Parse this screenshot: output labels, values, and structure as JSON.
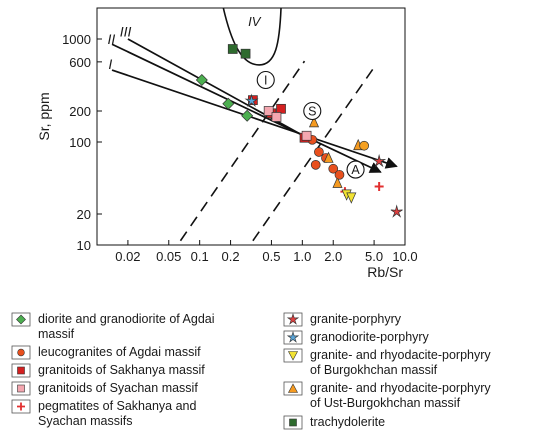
{
  "chart_data": {
    "type": "scatter",
    "x_scale": "log",
    "y_scale": "log",
    "xlim": [
      0.01,
      10
    ],
    "ylim": [
      10,
      2000
    ],
    "xlabel": "Rb/Sr",
    "ylabel": "Sr, ppm",
    "x_ticks": [
      {
        "value": 0.02,
        "label": "0.02"
      },
      {
        "value": 0.05,
        "label": "0.05"
      },
      {
        "value": 0.1,
        "label": "0.1"
      },
      {
        "value": 0.2,
        "label": "0.2"
      },
      {
        "value": 0.5,
        "label": "0.5"
      },
      {
        "value": 1,
        "label": "1.0"
      },
      {
        "value": 2,
        "label": "2.0"
      },
      {
        "value": 5,
        "label": "5.0"
      },
      {
        "value": 10,
        "label": "10.0"
      }
    ],
    "y_ticks": [
      {
        "value": 10,
        "label": "10"
      },
      {
        "value": 20,
        "label": "20"
      },
      {
        "value": 100,
        "label": "100"
      },
      {
        "value": 200,
        "label": "200"
      },
      {
        "value": 600,
        "label": "600"
      },
      {
        "value": 1000,
        "label": "1000"
      }
    ],
    "series": [
      {
        "name": "diorite and granodiorite of Agdai massif",
        "marker": "diamond",
        "color": "#4caf50",
        "points": [
          [
            0.105,
            400
          ],
          [
            0.19,
            235
          ],
          [
            0.29,
            180
          ]
        ]
      },
      {
        "name": "leucogranites of Agdai massif",
        "marker": "circle",
        "color": "#e8501e",
        "points": [
          [
            1.25,
            105
          ],
          [
            1.45,
            80
          ],
          [
            1.7,
            70
          ],
          [
            2.0,
            55
          ],
          [
            1.35,
            60
          ]
        ]
      },
      {
        "name": "granitoids of Sakhanya massif",
        "marker": "square",
        "color": "#d42020",
        "points": [
          [
            0.33,
            255
          ],
          [
            0.5,
            190
          ],
          [
            0.62,
            210
          ],
          [
            1.05,
            110
          ]
        ]
      },
      {
        "name": "granitoids of Syachan massif",
        "marker": "square",
        "color": "#f4a7b0",
        "points": [
          [
            0.47,
            200
          ],
          [
            0.56,
            175
          ],
          [
            1.1,
            115
          ]
        ]
      },
      {
        "name": "pegmatites of Sakhanya and Syachan massifs",
        "marker": "plus",
        "color": "#e23030",
        "points": [
          [
            2.6,
            33
          ],
          [
            5.6,
            37
          ]
        ]
      },
      {
        "name": "granite-porphyry",
        "marker": "star",
        "color": "#e04040",
        "points": [
          [
            5.6,
            65
          ],
          [
            8.3,
            21
          ]
        ]
      },
      {
        "name": "granodiorite-porphyry",
        "marker": "star",
        "color": "#5aa5d8",
        "points": [
          [
            0.32,
            250
          ]
        ]
      },
      {
        "name": "granite- and rhyodacite-porphyry of Burgokhchan massif",
        "marker": "triangle-down",
        "color": "#f2e233",
        "points": [
          [
            2.7,
            31
          ],
          [
            3.0,
            29
          ]
        ]
      },
      {
        "name": "granite- and rhyodacite-porphyry of Ust-Burgokhchan massif",
        "marker": "triangle-up",
        "color": "#f59a20",
        "points": [
          [
            1.3,
            155
          ],
          [
            1.8,
            70
          ],
          [
            2.2,
            40
          ],
          [
            3.5,
            93
          ]
        ]
      },
      {
        "name": "trachydolerite",
        "marker": "square",
        "color": "#2e6b2e",
        "points": [
          [
            0.21,
            800
          ],
          [
            0.28,
            720
          ]
        ]
      }
    ],
    "extra_points": [
      {
        "marker": "circle",
        "color": "#f5a020",
        "x": 4.0,
        "y": 92
      },
      {
        "marker": "circle",
        "color": "#e8501e",
        "x": 2.3,
        "y": 48
      }
    ],
    "trend_lines": [
      {
        "label": "I",
        "points": [
          [
            0.014,
            500
          ],
          [
            8.3,
            58
          ]
        ]
      },
      {
        "label": "II",
        "points": [
          [
            0.014,
            890
          ],
          [
            1.25,
            105
          ],
          [
            5.8,
            51
          ]
        ]
      },
      {
        "label": "III",
        "points": [
          [
            0.02,
            1000
          ],
          [
            1.15,
            108
          ]
        ]
      }
    ],
    "region_iv": {
      "label": "IV"
    },
    "dashed_lines": [
      {
        "points": [
          [
            0.065,
            11
          ],
          [
            1.05,
            610
          ]
        ]
      },
      {
        "points": [
          [
            0.33,
            11
          ],
          [
            5.0,
            530
          ]
        ]
      }
    ],
    "circle_labels": [
      {
        "label": "I",
        "x": 0.44,
        "y": 400
      },
      {
        "label": "S",
        "x": 1.25,
        "y": 200
      },
      {
        "label": "A",
        "x": 3.3,
        "y": 54
      }
    ]
  },
  "legend": {
    "left": [
      {
        "marker": "diamond",
        "color": "#4caf50",
        "label": "diorite and granodiorite of Agdai\nmassif"
      },
      {
        "marker": "circle",
        "color": "#e8501e",
        "label": "leucogranites of Agdai massif"
      },
      {
        "marker": "square",
        "color": "#d42020",
        "label": "granitoids of Sakhanya massif"
      },
      {
        "marker": "square",
        "color": "#f4a7b0",
        "label": "granitoids of Syachan massif"
      },
      {
        "marker": "plus",
        "color": "#e23030",
        "label": "pegmatites of Sakhanya and\nSyachan massifs"
      }
    ],
    "right": [
      {
        "marker": "star",
        "color": "#e04040",
        "label": "granite-porphyry"
      },
      {
        "marker": "star",
        "color": "#5aa5d8",
        "label": "granodiorite-porphyry"
      },
      {
        "marker": "triangle-down",
        "color": "#f2e233",
        "label": "granite- and rhyodacite-porphyry\nof Burgokhchan massif"
      },
      {
        "marker": "triangle-up",
        "color": "#f59a20",
        "label": "granite- and rhyodacite-porphyry\nof Ust-Burgokhchan massif"
      },
      {
        "marker": "square",
        "color": "#2e6b2e",
        "label": "trachydolerite"
      }
    ]
  }
}
